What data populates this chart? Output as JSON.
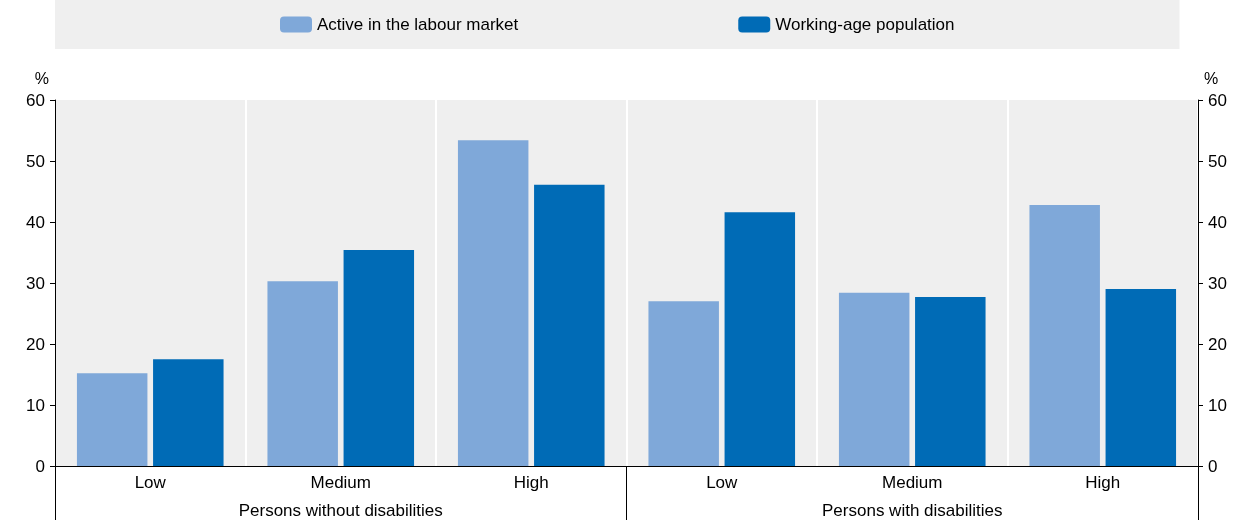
{
  "chart_data": {
    "type": "bar",
    "categories": [
      "Low",
      "Medium",
      "High",
      "Low",
      "Medium",
      "High"
    ],
    "series": [
      {
        "name": "Active in the labour market",
        "color": "#7fa8d9",
        "values": [
          15.2,
          30.3,
          53.4,
          27.0,
          28.4,
          42.8
        ]
      },
      {
        "name": "Working-age population",
        "color": "#006bb6",
        "values": [
          17.5,
          35.4,
          46.1,
          41.6,
          27.7,
          29.0
        ]
      }
    ],
    "annotations": [
      "Persons without disabilities",
      "Persons with disabilities"
    ],
    "ylabel": "%",
    "y2label": "%",
    "ylim": [
      0,
      60
    ],
    "yticks": [
      0,
      10,
      20,
      30,
      40,
      50,
      60
    ],
    "y2lim": [
      0,
      60
    ],
    "y2ticks": [
      0,
      10,
      20,
      30,
      40,
      50,
      60
    ],
    "grid": "x",
    "legend": "top"
  }
}
